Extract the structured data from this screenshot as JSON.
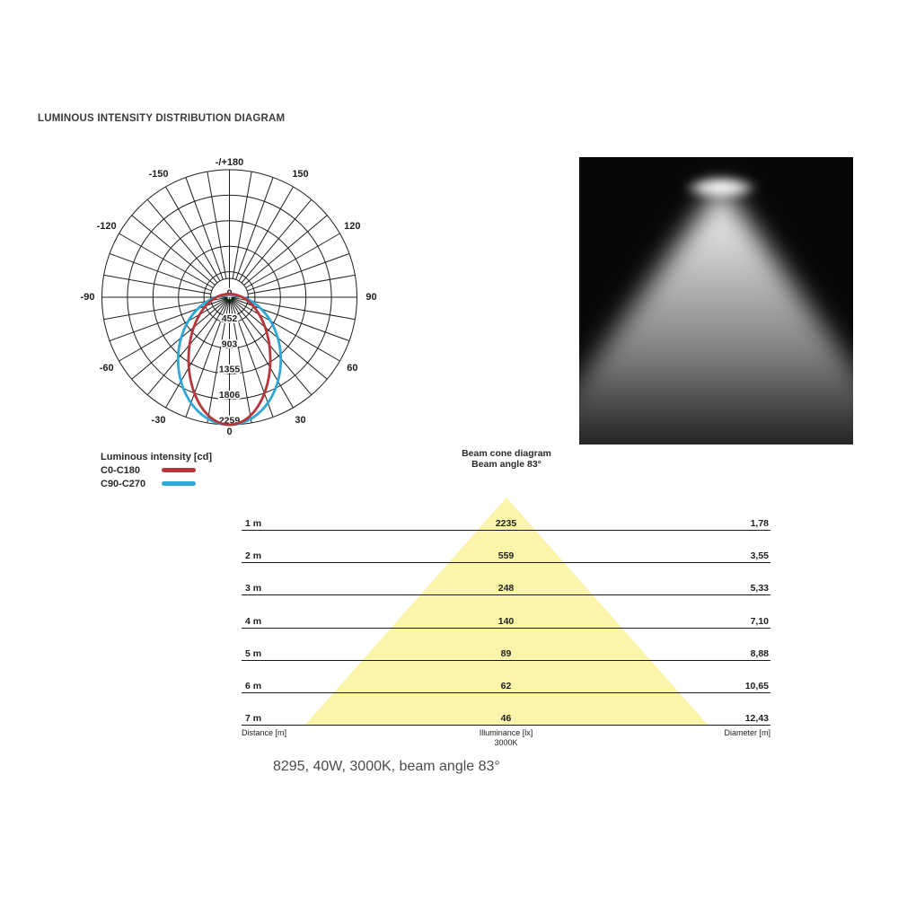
{
  "title": "LUMINOUS INTENSITY DISTRIBUTION DIAGRAM",
  "caption": "8295, 40W, 3000K, beam angle 83°",
  "chart_data": [
    {
      "type": "polar",
      "title": "LUMINOUS INTENSITY DISTRIBUTION DIAGRAM",
      "unit": "cd",
      "legend_title": "Luminous intensity [cd]",
      "angle_step_deg": 10,
      "angle_labels": [
        {
          "angle": 0,
          "label": "-/+180"
        },
        {
          "angle": 30,
          "label": "150"
        },
        {
          "angle": 60,
          "label": "120"
        },
        {
          "angle": 90,
          "label": "90"
        },
        {
          "angle": 120,
          "label": "60"
        },
        {
          "angle": 150,
          "label": "30"
        },
        {
          "angle": 180,
          "label": "0"
        },
        {
          "angle": 210,
          "label": "-30"
        },
        {
          "angle": 240,
          "label": "-60"
        },
        {
          "angle": 270,
          "label": "-90"
        },
        {
          "angle": 300,
          "label": "-120"
        },
        {
          "angle": 330,
          "label": "-150"
        }
      ],
      "radial_ticks": [
        0,
        452,
        903,
        1355,
        1806,
        2259
      ],
      "rmax": 2259,
      "series": [
        {
          "name": "C0-C180",
          "color": "#b5373c",
          "shape": "ellipse-lobe",
          "center_cd": 1100,
          "rx_cd": 725,
          "ry_cd": 1160
        },
        {
          "name": "C90-C270",
          "color": "#2fa8d5",
          "shape": "ellipse-lobe",
          "center_cd": 1110,
          "rx_cd": 910,
          "ry_cd": 1150
        }
      ]
    },
    {
      "type": "beam-cone-table",
      "title": "Beam cone diagram",
      "subtitle": "Beam angle 83°",
      "beam_angle_deg": 83,
      "cone_color": "#fbf4ab",
      "rows": [
        {
          "distance": "1 m",
          "illuminance": "2235",
          "diameter": "1,78"
        },
        {
          "distance": "2 m",
          "illuminance": "559",
          "diameter": "3,55"
        },
        {
          "distance": "3 m",
          "illuminance": "248",
          "diameter": "5,33"
        },
        {
          "distance": "4 m",
          "illuminance": "140",
          "diameter": "7,10"
        },
        {
          "distance": "5 m",
          "illuminance": "89",
          "diameter": "8,88"
        },
        {
          "distance": "6 m",
          "illuminance": "62",
          "diameter": "10,65"
        },
        {
          "distance": "7 m",
          "illuminance": "46",
          "diameter": "12,43"
        }
      ],
      "footer": {
        "distance": "Distance [m]",
        "illuminance": "Illuminance [lx]",
        "cct": "3000K",
        "diameter": "Diameter [m]"
      }
    }
  ]
}
